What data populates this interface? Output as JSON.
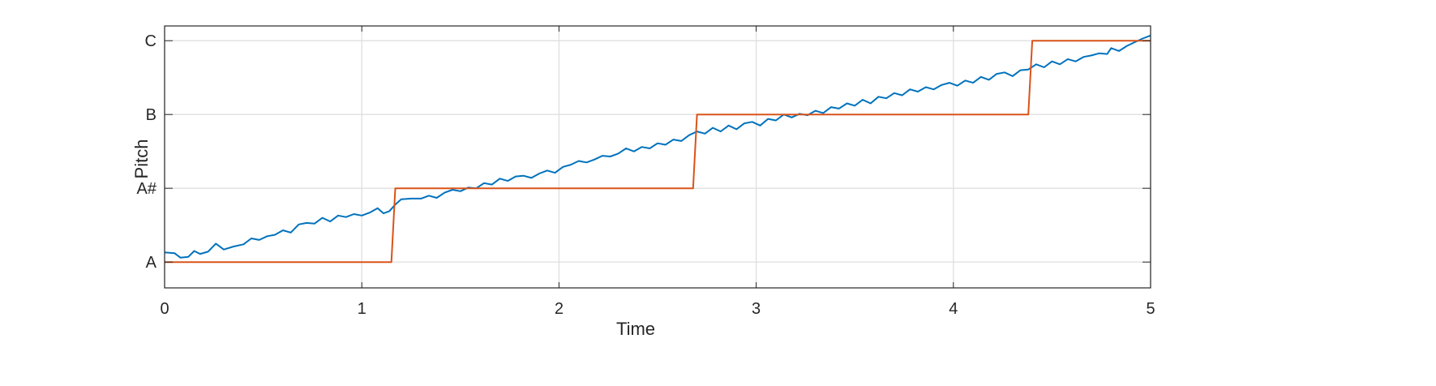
{
  "chart_data": {
    "type": "line",
    "title": "",
    "xlabel": "Time",
    "ylabel": "Pitch",
    "xlim": [
      0,
      5
    ],
    "ylim": [
      -0.35,
      3.2
    ],
    "grid": true,
    "x_ticks": [
      "0",
      "1",
      "2",
      "3",
      "4",
      "5"
    ],
    "y_ticks": [
      {
        "value": 0,
        "label": "A"
      },
      {
        "value": 1,
        "label": "A#"
      },
      {
        "value": 2,
        "label": "B"
      },
      {
        "value": 3,
        "label": "C"
      }
    ],
    "series": [
      {
        "color": "#0072BD",
        "points": [
          [
            0.0,
            0.13
          ],
          [
            0.05,
            0.12
          ],
          [
            0.08,
            0.06
          ],
          [
            0.12,
            0.07
          ],
          [
            0.15,
            0.15
          ],
          [
            0.18,
            0.11
          ],
          [
            0.22,
            0.14
          ],
          [
            0.26,
            0.25
          ],
          [
            0.3,
            0.17
          ],
          [
            0.35,
            0.21
          ],
          [
            0.4,
            0.24
          ],
          [
            0.44,
            0.32
          ],
          [
            0.48,
            0.3
          ],
          [
            0.52,
            0.35
          ],
          [
            0.56,
            0.37
          ],
          [
            0.6,
            0.43
          ],
          [
            0.64,
            0.4
          ],
          [
            0.68,
            0.51
          ],
          [
            0.72,
            0.53
          ],
          [
            0.76,
            0.52
          ],
          [
            0.8,
            0.6
          ],
          [
            0.84,
            0.55
          ],
          [
            0.88,
            0.63
          ],
          [
            0.92,
            0.61
          ],
          [
            0.96,
            0.65
          ],
          [
            1.0,
            0.63
          ],
          [
            1.04,
            0.67
          ],
          [
            1.08,
            0.73
          ],
          [
            1.11,
            0.66
          ],
          [
            1.14,
            0.69
          ],
          [
            1.17,
            0.78
          ],
          [
            1.2,
            0.85
          ],
          [
            1.25,
            0.86
          ],
          [
            1.3,
            0.86
          ],
          [
            1.34,
            0.9
          ],
          [
            1.38,
            0.87
          ],
          [
            1.42,
            0.94
          ],
          [
            1.46,
            0.98
          ],
          [
            1.5,
            0.96
          ],
          [
            1.54,
            1.01
          ],
          [
            1.58,
            1.0
          ],
          [
            1.62,
            1.07
          ],
          [
            1.66,
            1.05
          ],
          [
            1.7,
            1.13
          ],
          [
            1.74,
            1.1
          ],
          [
            1.78,
            1.16
          ],
          [
            1.82,
            1.17
          ],
          [
            1.86,
            1.14
          ],
          [
            1.9,
            1.2
          ],
          [
            1.94,
            1.24
          ],
          [
            1.98,
            1.21
          ],
          [
            2.02,
            1.29
          ],
          [
            2.06,
            1.32
          ],
          [
            2.1,
            1.37
          ],
          [
            2.14,
            1.35
          ],
          [
            2.18,
            1.39
          ],
          [
            2.22,
            1.44
          ],
          [
            2.26,
            1.43
          ],
          [
            2.3,
            1.47
          ],
          [
            2.34,
            1.54
          ],
          [
            2.38,
            1.5
          ],
          [
            2.42,
            1.56
          ],
          [
            2.46,
            1.54
          ],
          [
            2.5,
            1.61
          ],
          [
            2.54,
            1.59
          ],
          [
            2.58,
            1.66
          ],
          [
            2.62,
            1.64
          ],
          [
            2.66,
            1.72
          ],
          [
            2.7,
            1.77
          ],
          [
            2.74,
            1.74
          ],
          [
            2.78,
            1.82
          ],
          [
            2.82,
            1.77
          ],
          [
            2.86,
            1.85
          ],
          [
            2.9,
            1.8
          ],
          [
            2.94,
            1.88
          ],
          [
            2.98,
            1.9
          ],
          [
            3.02,
            1.85
          ],
          [
            3.06,
            1.94
          ],
          [
            3.1,
            1.92
          ],
          [
            3.14,
            2.0
          ],
          [
            3.18,
            1.96
          ],
          [
            3.22,
            2.01
          ],
          [
            3.26,
            1.99
          ],
          [
            3.3,
            2.05
          ],
          [
            3.34,
            2.02
          ],
          [
            3.38,
            2.1
          ],
          [
            3.42,
            2.08
          ],
          [
            3.46,
            2.15
          ],
          [
            3.5,
            2.12
          ],
          [
            3.54,
            2.2
          ],
          [
            3.58,
            2.15
          ],
          [
            3.62,
            2.24
          ],
          [
            3.66,
            2.22
          ],
          [
            3.7,
            2.29
          ],
          [
            3.74,
            2.26
          ],
          [
            3.78,
            2.34
          ],
          [
            3.82,
            2.31
          ],
          [
            3.86,
            2.37
          ],
          [
            3.9,
            2.34
          ],
          [
            3.94,
            2.4
          ],
          [
            3.98,
            2.43
          ],
          [
            4.02,
            2.39
          ],
          [
            4.06,
            2.46
          ],
          [
            4.1,
            2.43
          ],
          [
            4.14,
            2.51
          ],
          [
            4.18,
            2.47
          ],
          [
            4.22,
            2.55
          ],
          [
            4.26,
            2.57
          ],
          [
            4.3,
            2.52
          ],
          [
            4.34,
            2.6
          ],
          [
            4.38,
            2.61
          ],
          [
            4.42,
            2.68
          ],
          [
            4.46,
            2.64
          ],
          [
            4.5,
            2.72
          ],
          [
            4.54,
            2.68
          ],
          [
            4.58,
            2.75
          ],
          [
            4.62,
            2.72
          ],
          [
            4.66,
            2.78
          ],
          [
            4.7,
            2.8
          ],
          [
            4.74,
            2.83
          ],
          [
            4.78,
            2.82
          ],
          [
            4.8,
            2.9
          ],
          [
            4.84,
            2.86
          ],
          [
            4.88,
            2.93
          ],
          [
            4.92,
            2.98
          ],
          [
            4.96,
            3.03
          ],
          [
            5.0,
            3.07
          ]
        ]
      },
      {
        "color": "#D95319",
        "points": [
          [
            0.0,
            0.0
          ],
          [
            1.15,
            0.0
          ],
          [
            1.17,
            1.0
          ],
          [
            2.68,
            1.0
          ],
          [
            2.7,
            2.0
          ],
          [
            4.38,
            2.0
          ],
          [
            4.4,
            3.0
          ],
          [
            5.0,
            3.0
          ]
        ]
      }
    ]
  }
}
